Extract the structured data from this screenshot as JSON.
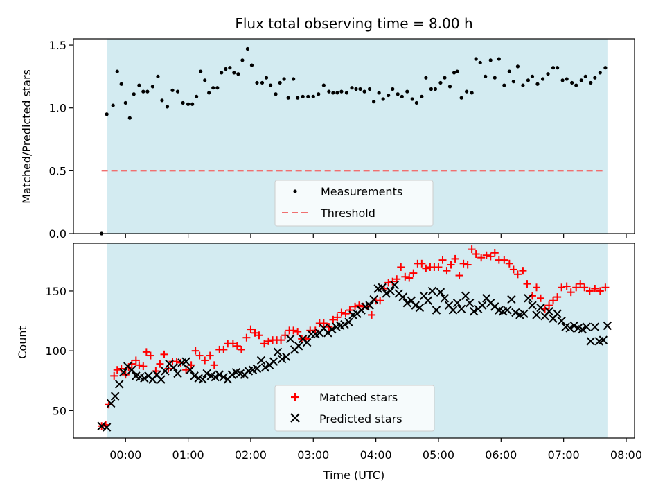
{
  "chart_data": [
    {
      "type": "scatter",
      "title": "Flux total observing time = 8.00 h",
      "xlabel": "",
      "ylabel": "Matched/Predicted stars",
      "ylim": [
        0,
        1.55
      ],
      "yticks": [
        "0.0",
        "0.5",
        "1.0",
        "1.5"
      ],
      "ytick_values": [
        0,
        0.5,
        1.0,
        1.5
      ],
      "xlim_hours": [
        -0.833,
        8.133
      ],
      "shaded_span_hours": [
        -0.3,
        7.7
      ],
      "threshold": 0.5,
      "legend": {
        "position": "lower-center",
        "entries": [
          "Measurements",
          "Threshold"
        ]
      },
      "series": [
        {
          "name": "Measurements",
          "color": "#000000",
          "marker": "dot",
          "x": [
            -0.383,
            -0.3,
            -0.2,
            -0.133,
            -0.067,
            0.0,
            0.067,
            0.133,
            0.217,
            0.283,
            0.35,
            0.433,
            0.517,
            0.583,
            0.667,
            0.75,
            0.833,
            0.917,
            1.0,
            1.067,
            1.133,
            1.2,
            1.267,
            1.333,
            1.4,
            1.467,
            1.533,
            1.6,
            1.667,
            1.733,
            1.8,
            1.867,
            1.95,
            2.017,
            2.1,
            2.183,
            2.25,
            2.317,
            2.4,
            2.467,
            2.533,
            2.6,
            2.683,
            2.75,
            2.833,
            2.917,
            3.0,
            3.083,
            3.167,
            3.25,
            3.317,
            3.383,
            3.45,
            3.533,
            3.617,
            3.683,
            3.75,
            3.817,
            3.9,
            3.967,
            4.05,
            4.117,
            4.2,
            4.267,
            4.35,
            4.417,
            4.5,
            4.583,
            4.65,
            4.733,
            4.8,
            4.883,
            4.95,
            5.033,
            5.1,
            5.183,
            5.25,
            5.3,
            5.367,
            5.45,
            5.533,
            5.6,
            5.667,
            5.75,
            5.833,
            5.9,
            5.967,
            6.05,
            6.133,
            6.2,
            6.267,
            6.35,
            6.433,
            6.5,
            6.583,
            6.667,
            6.75,
            6.833,
            6.9,
            6.983,
            7.05,
            7.133,
            7.2,
            7.283,
            7.35,
            7.433,
            7.5,
            7.583,
            7.667
          ],
          "y": [
            0.0,
            0.95,
            1.02,
            1.29,
            1.19,
            1.04,
            0.92,
            1.11,
            1.18,
            1.13,
            1.13,
            1.17,
            1.25,
            1.06,
            1.01,
            1.14,
            1.13,
            1.04,
            1.03,
            1.03,
            1.09,
            1.29,
            1.22,
            1.12,
            1.16,
            1.16,
            1.28,
            1.31,
            1.32,
            1.28,
            1.27,
            1.38,
            1.47,
            1.34,
            1.2,
            1.2,
            1.24,
            1.18,
            1.11,
            1.2,
            1.23,
            1.08,
            1.23,
            1.08,
            1.09,
            1.09,
            1.09,
            1.11,
            1.18,
            1.13,
            1.12,
            1.12,
            1.13,
            1.12,
            1.16,
            1.15,
            1.15,
            1.13,
            1.15,
            1.05,
            1.12,
            1.07,
            1.1,
            1.15,
            1.11,
            1.09,
            1.13,
            1.07,
            1.04,
            1.09,
            1.24,
            1.15,
            1.15,
            1.2,
            1.24,
            1.17,
            1.28,
            1.29,
            1.08,
            1.13,
            1.12,
            1.39,
            1.36,
            1.25,
            1.38,
            1.24,
            1.39,
            1.18,
            1.29,
            1.21,
            1.33,
            1.18,
            1.22,
            1.25,
            1.19,
            1.23,
            1.27,
            1.32,
            1.32,
            1.22,
            1.23,
            1.2,
            1.18,
            1.22,
            1.25,
            1.2,
            1.24,
            1.28,
            1.32
          ]
        },
        {
          "name": "Threshold",
          "color": "#f07070",
          "style": "dashed",
          "x": [
            -0.383,
            7.667
          ],
          "y": [
            0.5,
            0.5
          ]
        }
      ]
    },
    {
      "type": "scatter",
      "title": "",
      "xlabel": "Time (UTC)",
      "ylabel": "Count",
      "ylim": [
        27,
        190
      ],
      "yticks": [
        "50",
        "100",
        "150"
      ],
      "ytick_values": [
        50,
        100,
        150
      ],
      "xticks": [
        "00:00",
        "01:00",
        "02:00",
        "03:00",
        "04:00",
        "05:00",
        "06:00",
        "07:00",
        "08:00"
      ],
      "xtick_hours": [
        0,
        1,
        2,
        3,
        4,
        5,
        6,
        7,
        8
      ],
      "xlim_hours": [
        -0.833,
        8.133
      ],
      "shaded_span_hours": [
        -0.3,
        7.7
      ],
      "legend": {
        "position": "lower-center",
        "entries": [
          "Matched stars",
          "Predicted stars"
        ]
      },
      "series": [
        {
          "name": "Matched stars",
          "color": "#ff0000",
          "marker": "plus",
          "x": [
            -0.383,
            -0.317,
            -0.267,
            -0.183,
            -0.133,
            -0.067,
            0.0,
            0.05,
            0.1,
            0.167,
            0.217,
            0.283,
            0.333,
            0.4,
            0.483,
            0.55,
            0.617,
            0.683,
            0.75,
            0.817,
            0.883,
            0.967,
            1.05,
            1.117,
            1.183,
            1.267,
            1.35,
            1.417,
            1.5,
            1.567,
            1.633,
            1.717,
            1.783,
            1.85,
            1.933,
            2.0,
            2.067,
            2.133,
            2.217,
            2.283,
            2.35,
            2.417,
            2.483,
            2.55,
            2.617,
            2.683,
            2.75,
            2.817,
            2.883,
            2.95,
            3.033,
            3.1,
            3.167,
            3.25,
            3.317,
            3.383,
            3.45,
            3.517,
            3.583,
            3.667,
            3.733,
            3.8,
            3.867,
            3.933,
            4.0,
            4.067,
            4.133,
            4.2,
            4.267,
            4.333,
            4.4,
            4.467,
            4.533,
            4.6,
            4.667,
            4.733,
            4.8,
            4.867,
            4.933,
            5.0,
            5.067,
            5.133,
            5.2,
            5.267,
            5.333,
            5.4,
            5.467,
            5.533,
            5.6,
            5.683,
            5.767,
            5.833,
            5.9,
            5.967,
            6.05,
            6.133,
            6.2,
            6.267,
            6.35,
            6.417,
            6.5,
            6.567,
            6.633,
            6.7,
            6.767,
            6.833,
            6.9,
            6.967,
            7.05,
            7.117,
            7.2,
            7.267,
            7.333,
            7.417,
            7.5,
            7.583,
            7.667
          ],
          "y": [
            37,
            38,
            55,
            79,
            84,
            85,
            80,
            86,
            89,
            92,
            88,
            87,
            99,
            96,
            83,
            89,
            97,
            85,
            91,
            91,
            90,
            84,
            88,
            100,
            96,
            92,
            96,
            88,
            101,
            101,
            106,
            106,
            104,
            101,
            111,
            118,
            115,
            113,
            106,
            108,
            109,
            109,
            109,
            113,
            117,
            117,
            116,
            110,
            110,
            117,
            117,
            123,
            123,
            120,
            126,
            128,
            132,
            131,
            134,
            137,
            138,
            137,
            137,
            130,
            142,
            142,
            152,
            157,
            158,
            160,
            170,
            162,
            161,
            165,
            173,
            173,
            169,
            170,
            170,
            170,
            176,
            167,
            172,
            177,
            163,
            173,
            172,
            185,
            181,
            178,
            180,
            179,
            182,
            176,
            176,
            173,
            168,
            164,
            167,
            156,
            146,
            153,
            144,
            135,
            138,
            142,
            145,
            153,
            154,
            149,
            153,
            156,
            153,
            150,
            152,
            150,
            153
          ]
        },
        {
          "name": "Predicted stars",
          "color": "#000000",
          "marker": "x",
          "x": [
            -0.383,
            -0.3,
            -0.233,
            -0.167,
            -0.1,
            -0.033,
            0.033,
            0.1,
            0.167,
            0.233,
            0.3,
            0.367,
            0.433,
            0.5,
            0.567,
            0.633,
            0.7,
            0.767,
            0.833,
            0.9,
            0.967,
            1.033,
            1.1,
            1.167,
            1.233,
            1.3,
            1.367,
            1.433,
            1.5,
            1.567,
            1.633,
            1.7,
            1.767,
            1.833,
            1.9,
            1.967,
            2.033,
            2.1,
            2.167,
            2.233,
            2.3,
            2.367,
            2.433,
            2.5,
            2.567,
            2.633,
            2.7,
            2.767,
            2.833,
            2.9,
            2.967,
            3.033,
            3.1,
            3.167,
            3.233,
            3.3,
            3.367,
            3.433,
            3.5,
            3.567,
            3.633,
            3.7,
            3.767,
            3.833,
            3.9,
            3.967,
            4.033,
            4.1,
            4.167,
            4.233,
            4.3,
            4.367,
            4.433,
            4.5,
            4.567,
            4.633,
            4.7,
            4.767,
            4.833,
            4.9,
            4.967,
            5.033,
            5.1,
            5.167,
            5.233,
            5.3,
            5.367,
            5.433,
            5.5,
            5.567,
            5.633,
            5.7,
            5.767,
            5.833,
            5.9,
            5.967,
            6.033,
            6.1,
            6.167,
            6.233,
            6.3,
            6.367,
            6.433,
            6.5,
            6.567,
            6.633,
            6.7,
            6.767,
            6.833,
            6.9,
            6.967,
            7.033,
            7.1,
            7.167,
            7.233,
            7.3,
            7.367,
            7.433,
            7.5,
            7.567,
            7.633,
            7.7
          ],
          "y": [
            37,
            36,
            56,
            62,
            72,
            82,
            87,
            84,
            79,
            78,
            77,
            79,
            76,
            80,
            76,
            83,
            89,
            86,
            81,
            90,
            91,
            84,
            79,
            77,
            76,
            81,
            79,
            78,
            80,
            78,
            76,
            80,
            82,
            81,
            80,
            83,
            84,
            85,
            92,
            86,
            88,
            91,
            99,
            93,
            95,
            110,
            101,
            104,
            110,
            107,
            114,
            114,
            115,
            119,
            115,
            118,
            120,
            121,
            122,
            124,
            130,
            131,
            134,
            137,
            138,
            143,
            152,
            153,
            148,
            150,
            155,
            148,
            145,
            140,
            142,
            138,
            136,
            146,
            142,
            150,
            134,
            149,
            144,
            138,
            134,
            140,
            135,
            146,
            140,
            133,
            135,
            138,
            144,
            140,
            137,
            134,
            133,
            134,
            143,
            132,
            130,
            131,
            144,
            138,
            130,
            136,
            129,
            133,
            127,
            131,
            125,
            120,
            119,
            121,
            119,
            118,
            120,
            108,
            120,
            108,
            109,
            121
          ]
        }
      ]
    }
  ]
}
